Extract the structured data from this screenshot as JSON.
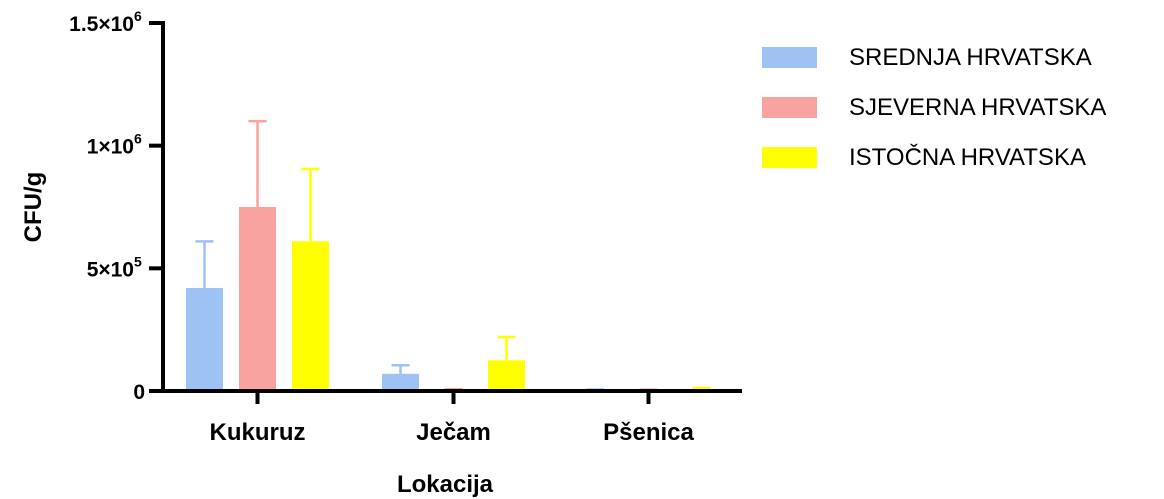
{
  "chart_data": {
    "type": "bar",
    "xlabel": "Lokacija",
    "ylabel": "CFU/g",
    "ylim": [
      0,
      1500000
    ],
    "y_ticks": [
      {
        "value": 0,
        "label": "0"
      },
      {
        "value": 500000,
        "label": "5×10",
        "exp": "5"
      },
      {
        "value": 1000000,
        "label": "1×10",
        "exp": "6"
      },
      {
        "value": 1500000,
        "label": "1.5×10",
        "exp": "6"
      }
    ],
    "categories": [
      "Kukuruz",
      "Ječam",
      "Pšenica"
    ],
    "series": [
      {
        "name": "SREDNJA HRVATSKA",
        "color": "#9dc3f5",
        "values": [
          420000,
          70000,
          4000
        ],
        "errors": [
          190000,
          35000,
          2000
        ]
      },
      {
        "name": "SJEVERNA HRVATSKA",
        "color": "#f9a3a1",
        "values": [
          750000,
          5000,
          3000
        ],
        "errors": [
          350000,
          2000,
          2000
        ]
      },
      {
        "name": "ISTOČNA HRVATSKA",
        "color": "#ffff00",
        "values": [
          610000,
          125000,
          8000
        ],
        "errors": [
          295000,
          95000,
          4000
        ]
      }
    ],
    "legend_position": "right",
    "grid": false
  }
}
